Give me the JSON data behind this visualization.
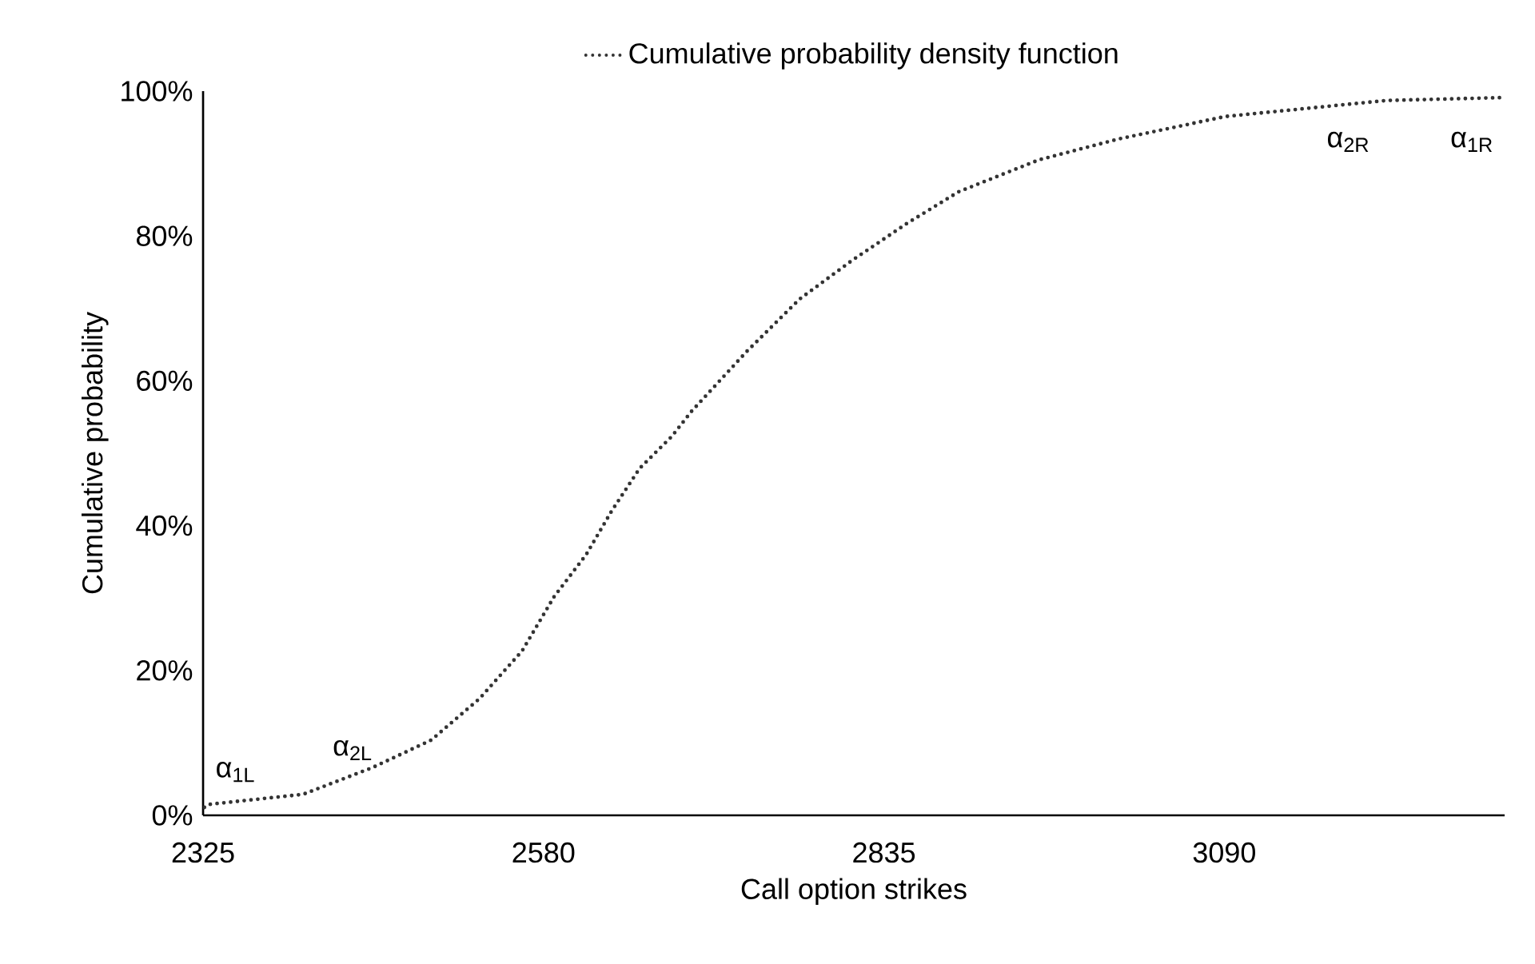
{
  "chart_data": {
    "type": "line",
    "xlabel": "Call option strikes",
    "ylabel": "Cumulative probability",
    "x": [
      2326,
      2329,
      2400,
      2452,
      2496,
      2532,
      2564,
      2588,
      2612,
      2631,
      2652,
      2676,
      2691,
      2732,
      2772,
      2811,
      2852,
      2891,
      2951,
      3011,
      3091,
      3151,
      3211,
      3297
    ],
    "series": [
      {
        "name": "Cumulative probability density function",
        "color": "#333333",
        "values": [
          1.1,
          1.5,
          2.9,
          6.6,
          10.4,
          16.1,
          22.7,
          30.2,
          36,
          42,
          47.9,
          52.3,
          55.8,
          64,
          71.3,
          76.6,
          81.7,
          86.1,
          90.5,
          93.4,
          96.5,
          97.6,
          98.7,
          99.1
        ]
      }
    ],
    "xlim": [
      2325,
      3300
    ],
    "xticks": [
      2325,
      2580,
      2835,
      3090
    ],
    "ylim": [
      0,
      100
    ],
    "yticks": [
      {
        "value": 0,
        "label": "0%"
      },
      {
        "value": 20,
        "label": "20%"
      },
      {
        "value": 40,
        "label": "40%"
      },
      {
        "value": 60,
        "label": "60%"
      },
      {
        "value": 80,
        "label": "80%"
      },
      {
        "value": 100,
        "label": "100%"
      }
    ],
    "annotations": [
      "α$_{1L}$",
      "α$_{2L}$",
      "α$_{2R}$",
      "α$_{1R}$"
    ],
    "legend": "top",
    "line_style": "dotted",
    "grid": false
  }
}
